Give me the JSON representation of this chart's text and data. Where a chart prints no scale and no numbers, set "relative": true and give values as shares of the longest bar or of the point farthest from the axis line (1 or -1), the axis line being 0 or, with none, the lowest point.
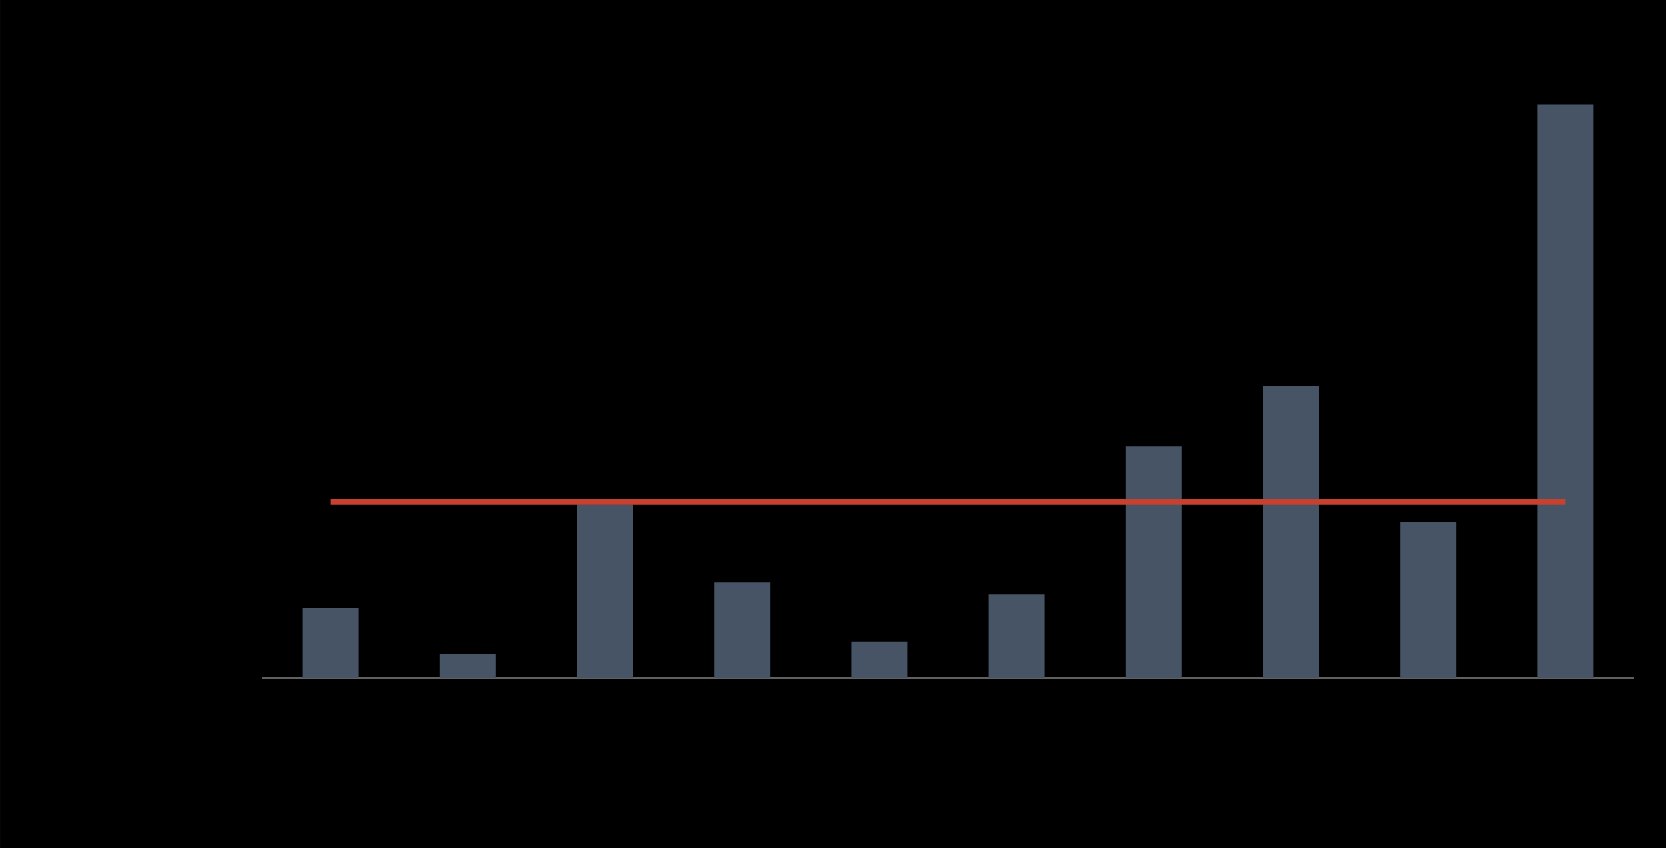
{
  "chart_data": {
    "type": "bar",
    "relative": true,
    "categories": [
      null,
      null,
      null,
      null,
      null,
      null,
      null,
      null,
      null,
      null
    ],
    "values": [
      0.122,
      0.042,
      0.303,
      0.167,
      0.063,
      0.146,
      0.404,
      0.509,
      0.272,
      1
    ],
    "color": "#465466",
    "ref_lines": [
      {
        "axis": "y",
        "value": 0.307,
        "color": "#c8412f"
      }
    ]
  }
}
